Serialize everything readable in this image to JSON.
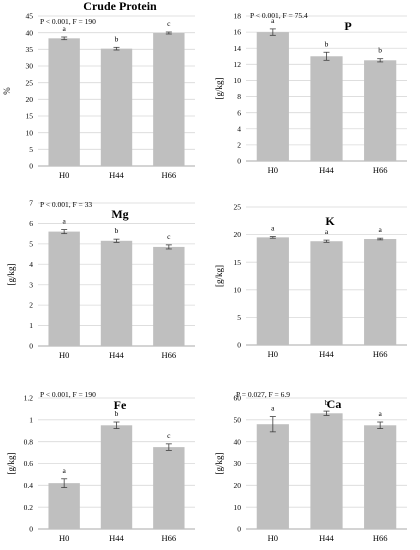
{
  "chart_data": [
    {
      "type": "bar",
      "title": "Crude Protein",
      "stat": "P < 0.001, F = 190",
      "ylabel": "%",
      "categories": [
        "H0",
        "H44",
        "H66"
      ],
      "values": [
        38.3,
        35.2,
        39.9
      ],
      "errors": [
        0.4,
        0.4,
        0.3
      ],
      "sig": [
        "a",
        "b",
        "c"
      ],
      "ylim": [
        0,
        45
      ],
      "ystep": 5,
      "ticks": [
        "0",
        "5",
        "10",
        "15",
        "20",
        "25",
        "30",
        "35",
        "40",
        "45"
      ],
      "grid": true
    },
    {
      "type": "bar",
      "title": "P",
      "stat": "P < 0.001, F = 75.4",
      "ylabel": "[g/kg]",
      "categories": [
        "H0",
        "H44",
        "H66"
      ],
      "values": [
        16.0,
        13.0,
        12.5
      ],
      "errors": [
        0.4,
        0.5,
        0.2
      ],
      "sig": [
        "a",
        "b",
        "b"
      ],
      "ylim": [
        0,
        18
      ],
      "ystep": 2,
      "ticks": [
        "0",
        "2",
        "4",
        "6",
        "8",
        "10",
        "12",
        "14",
        "16",
        "18"
      ],
      "grid": true
    },
    {
      "type": "bar",
      "title": "Mg",
      "stat": "P < 0.001, F = 33",
      "ylabel": "[g/kg]",
      "categories": [
        "H0",
        "H44",
        "H66"
      ],
      "values": [
        5.6,
        5.15,
        4.85
      ],
      "errors": [
        0.1,
        0.08,
        0.1
      ],
      "sig": [
        "a",
        "b",
        "c"
      ],
      "ylim": [
        0,
        7
      ],
      "ystep": 1,
      "ticks": [
        "0",
        "1",
        "2",
        "3",
        "4",
        "5",
        "6",
        "7"
      ],
      "grid": true
    },
    {
      "type": "bar",
      "title": "K",
      "stat": "",
      "ylabel": "[g/kg]",
      "categories": [
        "H0",
        "H44",
        "H66"
      ],
      "values": [
        19.5,
        18.8,
        19.2
      ],
      "errors": [
        0.15,
        0.2,
        0.15
      ],
      "sig": [
        "a",
        "a",
        "a"
      ],
      "ylim": [
        0,
        25
      ],
      "ystep": 5,
      "ticks": [
        "0",
        "5",
        "10",
        "15",
        "20",
        "25"
      ],
      "grid": true
    },
    {
      "type": "bar",
      "title": "Fe",
      "stat": "P < 0.001, F = 190",
      "ylabel": "[g/kg]",
      "categories": [
        "H0",
        "H44",
        "H66"
      ],
      "values": [
        0.42,
        0.95,
        0.75
      ],
      "errors": [
        0.04,
        0.03,
        0.03
      ],
      "sig": [
        "a",
        "b",
        "c"
      ],
      "ylim": [
        0,
        1.2
      ],
      "ystep": 0.2,
      "ticks": [
        "0",
        "0.2",
        "0.4",
        "0.6",
        "0.8",
        "1",
        "1.2"
      ],
      "grid": true
    },
    {
      "type": "bar",
      "title": "Ca",
      "stat": "P = 0.027, F = 6.9",
      "ylabel": "[g/kg]",
      "categories": [
        "H0",
        "H44",
        "H66"
      ],
      "values": [
        48.0,
        53.0,
        47.5
      ],
      "errors": [
        3.5,
        1.0,
        1.5
      ],
      "sig": [
        "a",
        "b",
        "a"
      ],
      "ylim": [
        0,
        60
      ],
      "ystep": 10,
      "ticks": [
        "0",
        "10",
        "20",
        "30",
        "40",
        "50",
        "60"
      ],
      "grid": true
    }
  ]
}
